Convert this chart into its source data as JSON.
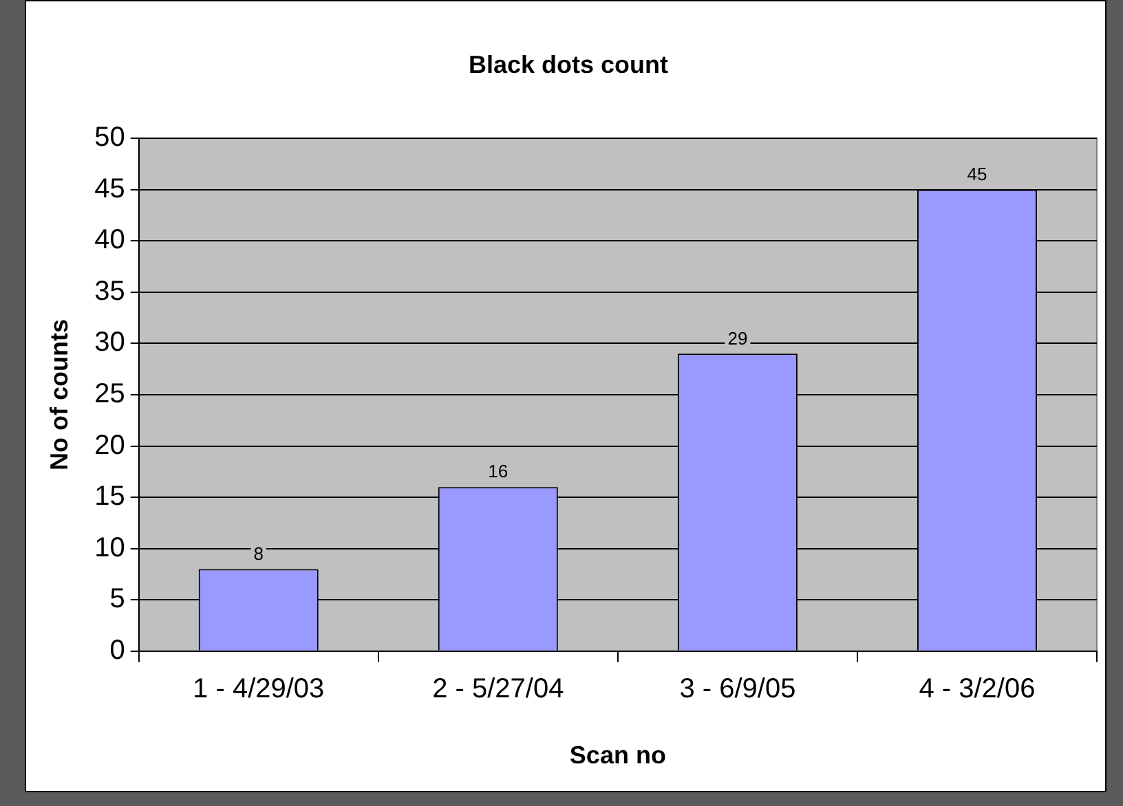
{
  "chart_data": {
    "type": "bar",
    "title": "Black dots count",
    "xlabel": "Scan no",
    "ylabel": "No of counts",
    "categories": [
      "1 - 4/29/03",
      "2 - 5/27/04",
      "3 - 6/9/05",
      "4 - 3/2/06"
    ],
    "values": [
      8,
      16,
      29,
      45
    ],
    "color": "#9999ff",
    "ylim": [
      0,
      50
    ],
    "yticks": [
      0,
      5,
      10,
      15,
      20,
      25,
      30,
      35,
      40,
      45,
      50
    ],
    "grid": "y",
    "data_labels": true,
    "legend": false
  }
}
